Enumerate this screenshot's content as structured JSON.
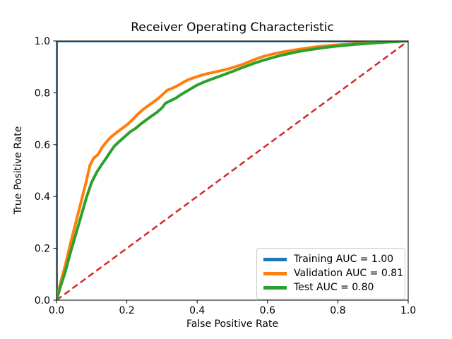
{
  "figure": {
    "title": "Receiver Operating Characteristic",
    "xlabel": "False Positive Rate",
    "ylabel": "True Positive Rate"
  },
  "legend": {
    "position": "lower right",
    "items": [
      {
        "label": "Training AUC = 1.00",
        "color": "#1f77b4"
      },
      {
        "label": "Validation AUC = 0.81",
        "color": "#ff7f0e"
      },
      {
        "label": "Test AUC = 0.80",
        "color": "#2ca02c"
      }
    ]
  },
  "chart_data": {
    "type": "line",
    "title": "Receiver Operating Characteristic",
    "xlabel": "False Positive Rate",
    "ylabel": "True Positive Rate",
    "xlim": [
      0.0,
      1.0
    ],
    "ylim": [
      0.0,
      1.0
    ],
    "x_ticks": [
      0.0,
      0.2,
      0.4,
      0.6,
      0.8,
      1.0
    ],
    "y_ticks": [
      0.0,
      0.2,
      0.4,
      0.6,
      0.8,
      1.0
    ],
    "grid": false,
    "legend_position": "lower right",
    "reference_line": {
      "name": "chance-diagonal",
      "style": "dashed",
      "color": "#d62728",
      "points": [
        [
          0,
          0
        ],
        [
          1,
          1
        ]
      ]
    },
    "series": [
      {
        "name": "Training",
        "auc": 1.0,
        "color": "#1f77b4",
        "linewidth": 4,
        "points": [
          [
            0,
            0
          ],
          [
            0,
            1
          ],
          [
            1,
            1
          ]
        ]
      },
      {
        "name": "Validation",
        "auc": 0.81,
        "color": "#ff7f0e",
        "linewidth": 4,
        "points": [
          [
            0,
            0
          ],
          [
            0.012,
            0.07
          ],
          [
            0.025,
            0.135
          ],
          [
            0.04,
            0.22
          ],
          [
            0.055,
            0.3
          ],
          [
            0.07,
            0.38
          ],
          [
            0.085,
            0.46
          ],
          [
            0.095,
            0.52
          ],
          [
            0.105,
            0.547
          ],
          [
            0.118,
            0.562
          ],
          [
            0.13,
            0.59
          ],
          [
            0.143,
            0.612
          ],
          [
            0.155,
            0.63
          ],
          [
            0.17,
            0.646
          ],
          [
            0.185,
            0.661
          ],
          [
            0.2,
            0.676
          ],
          [
            0.215,
            0.695
          ],
          [
            0.23,
            0.716
          ],
          [
            0.245,
            0.734
          ],
          [
            0.26,
            0.75
          ],
          [
            0.275,
            0.764
          ],
          [
            0.29,
            0.779
          ],
          [
            0.303,
            0.795
          ],
          [
            0.315,
            0.81
          ],
          [
            0.33,
            0.818
          ],
          [
            0.345,
            0.828
          ],
          [
            0.36,
            0.84
          ],
          [
            0.375,
            0.851
          ],
          [
            0.39,
            0.858
          ],
          [
            0.41,
            0.867
          ],
          [
            0.43,
            0.874
          ],
          [
            0.45,
            0.88
          ],
          [
            0.47,
            0.886
          ],
          [
            0.49,
            0.893
          ],
          [
            0.51,
            0.901
          ],
          [
            0.53,
            0.91
          ],
          [
            0.55,
            0.921
          ],
          [
            0.57,
            0.932
          ],
          [
            0.59,
            0.941
          ],
          [
            0.61,
            0.948
          ],
          [
            0.63,
            0.954
          ],
          [
            0.65,
            0.959
          ],
          [
            0.67,
            0.964
          ],
          [
            0.7,
            0.97
          ],
          [
            0.73,
            0.976
          ],
          [
            0.76,
            0.98
          ],
          [
            0.79,
            0.984
          ],
          [
            0.82,
            0.987
          ],
          [
            0.85,
            0.989
          ],
          [
            0.88,
            0.992
          ],
          [
            0.91,
            0.994
          ],
          [
            0.94,
            0.996
          ],
          [
            0.97,
            0.998
          ],
          [
            1,
            1
          ]
        ]
      },
      {
        "name": "Test",
        "auc": 0.8,
        "color": "#2ca02c",
        "linewidth": 4,
        "points": [
          [
            0,
            0
          ],
          [
            0.012,
            0.055
          ],
          [
            0.025,
            0.11
          ],
          [
            0.04,
            0.185
          ],
          [
            0.055,
            0.255
          ],
          [
            0.07,
            0.325
          ],
          [
            0.085,
            0.395
          ],
          [
            0.1,
            0.455
          ],
          [
            0.115,
            0.495
          ],
          [
            0.128,
            0.522
          ],
          [
            0.14,
            0.545
          ],
          [
            0.153,
            0.572
          ],
          [
            0.165,
            0.595
          ],
          [
            0.18,
            0.614
          ],
          [
            0.195,
            0.632
          ],
          [
            0.21,
            0.65
          ],
          [
            0.225,
            0.663
          ],
          [
            0.24,
            0.68
          ],
          [
            0.255,
            0.695
          ],
          [
            0.27,
            0.71
          ],
          [
            0.285,
            0.724
          ],
          [
            0.3,
            0.742
          ],
          [
            0.31,
            0.76
          ],
          [
            0.325,
            0.77
          ],
          [
            0.34,
            0.78
          ],
          [
            0.355,
            0.794
          ],
          [
            0.37,
            0.806
          ],
          [
            0.385,
            0.818
          ],
          [
            0.4,
            0.83
          ],
          [
            0.42,
            0.842
          ],
          [
            0.44,
            0.852
          ],
          [
            0.46,
            0.862
          ],
          [
            0.48,
            0.872
          ],
          [
            0.5,
            0.882
          ],
          [
            0.52,
            0.893
          ],
          [
            0.54,
            0.903
          ],
          [
            0.56,
            0.913
          ],
          [
            0.58,
            0.922
          ],
          [
            0.6,
            0.93
          ],
          [
            0.62,
            0.938
          ],
          [
            0.64,
            0.945
          ],
          [
            0.66,
            0.951
          ],
          [
            0.68,
            0.957
          ],
          [
            0.7,
            0.962
          ],
          [
            0.73,
            0.968
          ],
          [
            0.76,
            0.974
          ],
          [
            0.79,
            0.979
          ],
          [
            0.82,
            0.983
          ],
          [
            0.85,
            0.987
          ],
          [
            0.88,
            0.99
          ],
          [
            0.91,
            0.993
          ],
          [
            0.94,
            0.996
          ],
          [
            0.97,
            0.998
          ],
          [
            1,
            1
          ]
        ]
      }
    ]
  }
}
